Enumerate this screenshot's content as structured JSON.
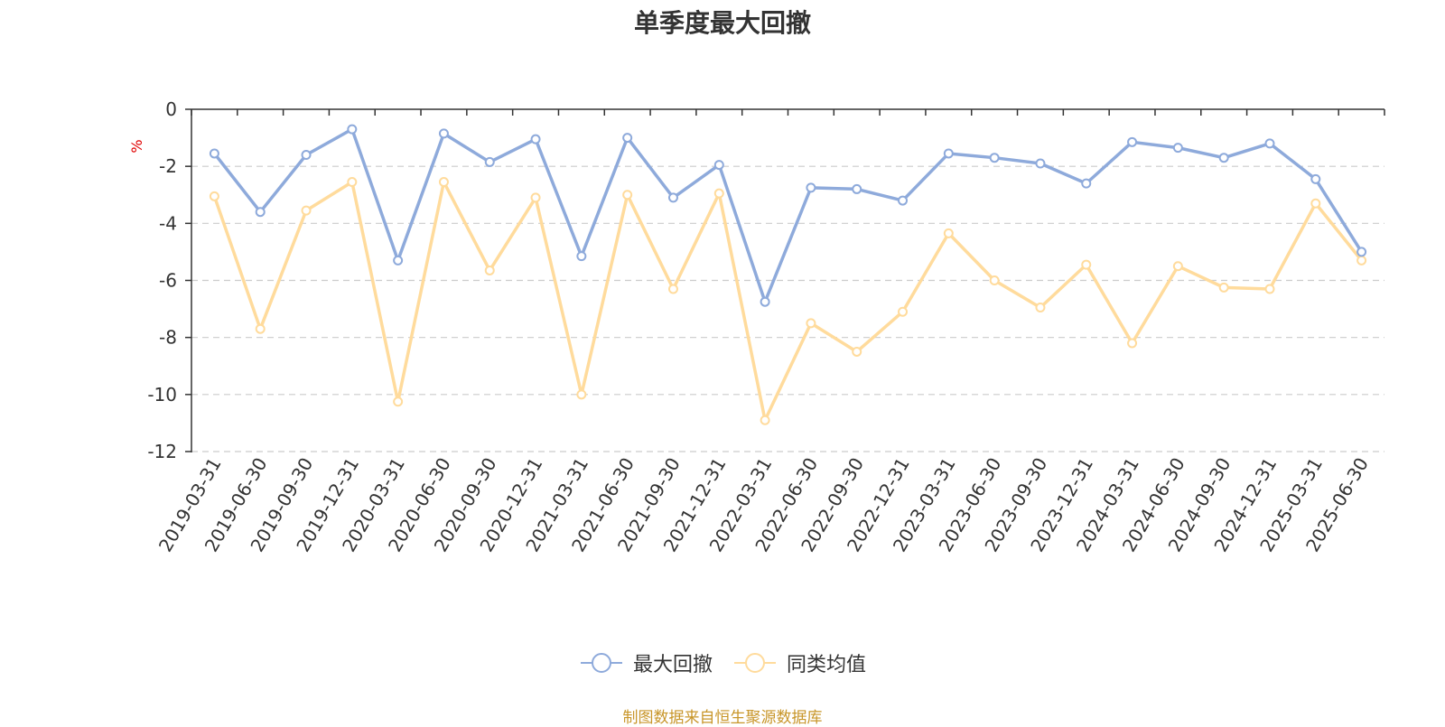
{
  "chart_data": {
    "type": "line",
    "title": "单季度最大回撤",
    "ylabel": "%",
    "xlabel": "",
    "ylim": [
      -12,
      0
    ],
    "yticks": [
      "0",
      "-2",
      "-4",
      "-6",
      "-8",
      "-10",
      "-12"
    ],
    "grid": true,
    "legend_position": "bottom-center",
    "categories": [
      "2019-03-31",
      "2019-06-30",
      "2019-09-30",
      "2019-12-31",
      "2020-03-31",
      "2020-06-30",
      "2020-09-30",
      "2020-12-31",
      "2021-03-31",
      "2021-06-30",
      "2021-09-30",
      "2021-12-31",
      "2022-03-31",
      "2022-06-30",
      "2022-09-30",
      "2022-12-31",
      "2023-03-31",
      "2023-06-30",
      "2023-09-30",
      "2023-12-31",
      "2024-03-31",
      "2024-06-30",
      "2024-09-30",
      "2024-12-31",
      "2025-03-31",
      "2025-06-30"
    ],
    "series": [
      {
        "name": "最大回撤",
        "color": "#8eaadb",
        "values": [
          -1.55,
          -3.6,
          -1.6,
          -0.7,
          -5.3,
          -0.85,
          -1.85,
          -1.05,
          -5.15,
          -1.0,
          -3.1,
          -1.95,
          -6.75,
          -2.75,
          -2.8,
          -3.2,
          -1.55,
          -1.7,
          -1.9,
          -2.6,
          -1.15,
          -1.35,
          -1.7,
          -1.2,
          -2.45,
          -5.0
        ]
      },
      {
        "name": "同类均值",
        "color": "#ffdb9c",
        "values": [
          -3.05,
          -7.7,
          -3.55,
          -2.55,
          -10.25,
          -2.55,
          -5.65,
          -3.1,
          -10.0,
          -3.0,
          -6.3,
          -2.95,
          -10.9,
          -7.5,
          -8.5,
          -7.1,
          -4.35,
          -6.0,
          -6.95,
          -5.45,
          -8.2,
          -5.5,
          -6.25,
          -6.3,
          -3.3,
          -5.3
        ]
      }
    ]
  },
  "colors": {
    "axis": "#333333",
    "grid": "#cccccc",
    "ylabel": "#e00000",
    "source": "#c8962a"
  },
  "source_note": "制图数据来自恒生聚源数据库"
}
